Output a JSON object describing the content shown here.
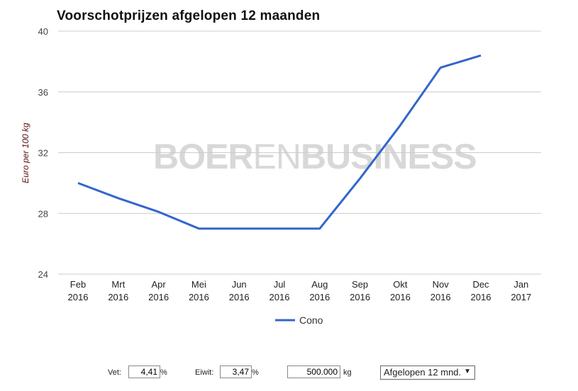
{
  "chart_data": {
    "type": "line",
    "title": "Voorschotprijzen afgelopen 12 maanden",
    "ylabel": "Euro per 100 kg",
    "xlabel": "",
    "ylim": [
      24,
      40
    ],
    "yticks": [
      "24",
      "28",
      "32",
      "36",
      "40"
    ],
    "categories": [
      {
        "month": "Feb",
        "year": "2016"
      },
      {
        "month": "Mrt",
        "year": "2016"
      },
      {
        "month": "Apr",
        "year": "2016"
      },
      {
        "month": "Mei",
        "year": "2016"
      },
      {
        "month": "Jun",
        "year": "2016"
      },
      {
        "month": "Jul",
        "year": "2016"
      },
      {
        "month": "Aug",
        "year": "2016"
      },
      {
        "month": "Sep",
        "year": "2016"
      },
      {
        "month": "Okt",
        "year": "2016"
      },
      {
        "month": "Nov",
        "year": "2016"
      },
      {
        "month": "Dec",
        "year": "2016"
      },
      {
        "month": "Jan",
        "year": "2017"
      }
    ],
    "series": [
      {
        "name": "Cono",
        "color": "#3366cc",
        "values": [
          30.0,
          29.0,
          28.1,
          27.0,
          27.0,
          27.0,
          27.0,
          30.3,
          33.8,
          37.6,
          38.4,
          null
        ]
      }
    ],
    "grid": true,
    "legend": "bottom",
    "watermark": {
      "bold1": "BOER",
      "light": "EN",
      "bold2": "BUSINESS"
    }
  },
  "controls": {
    "vet_label": "Vet:",
    "vet_value": "4,41",
    "vet_unit": "%",
    "eiwit_label": "Eiwit:",
    "eiwit_value": "3,47",
    "eiwit_unit": "%",
    "kg_value": "500.000",
    "kg_unit": "kg",
    "period_selected": "Afgelopen 12 mnd.",
    "period_arrow": "▼"
  }
}
